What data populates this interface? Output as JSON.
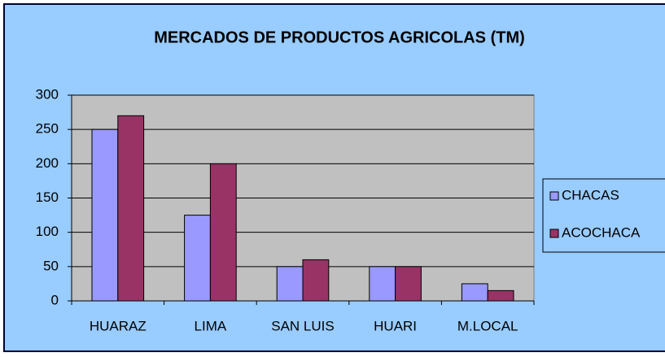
{
  "chart_data": {
    "type": "bar",
    "title": "MERCADOS DE PRODUCTOS AGRICOLAS (TM)",
    "categories": [
      "HUARAZ",
      "LIMA",
      "SAN LUIS",
      "HUARI",
      "M.LOCAL"
    ],
    "series": [
      {
        "name": "CHACAS",
        "color": "#9999ff",
        "values": [
          250,
          125,
          50,
          50,
          25
        ]
      },
      {
        "name": "ACOCHACA",
        "color": "#993366",
        "values": [
          270,
          200,
          60,
          50,
          15
        ]
      }
    ],
    "ylim": [
      0,
      300
    ],
    "yticks": [
      0,
      50,
      100,
      150,
      200,
      250,
      300
    ],
    "grid": true,
    "legend": "right"
  }
}
